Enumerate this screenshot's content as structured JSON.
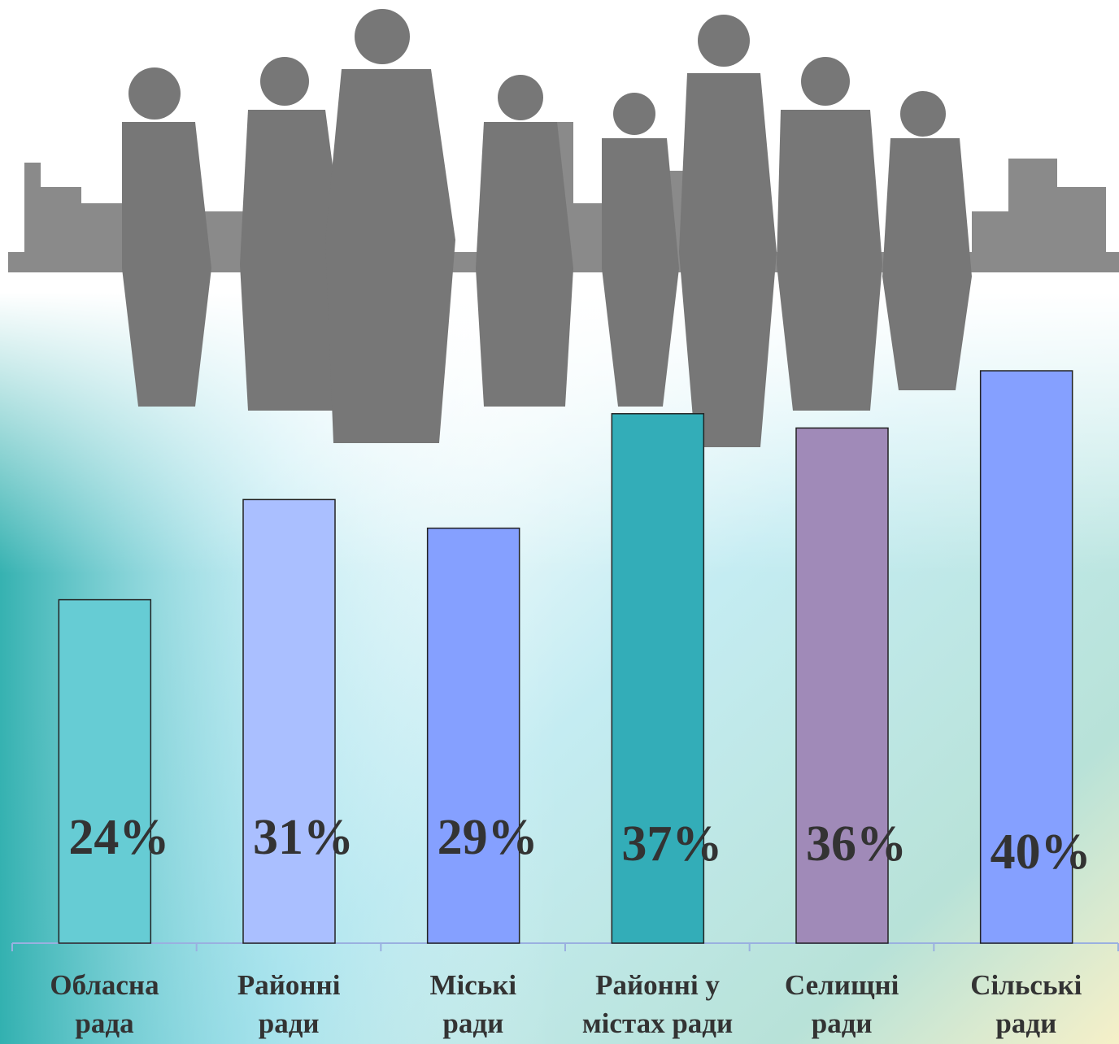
{
  "chart_data": {
    "type": "bar",
    "categories": [
      "Обласна\nрада",
      "Районні\nради",
      "Міські\nради",
      "Районні у\nмістах ради",
      "Селищні\nради",
      "Сільські\nради"
    ],
    "values": [
      24,
      31,
      29,
      37,
      36,
      40
    ],
    "value_labels": [
      "24%",
      "31%",
      "29%",
      "37%",
      "36%",
      "40%"
    ],
    "colors": [
      "#66ccd4",
      "#aabfff",
      "#85a0ff",
      "#33adb8",
      "#a08ab8",
      "#85a0ff"
    ]
  }
}
